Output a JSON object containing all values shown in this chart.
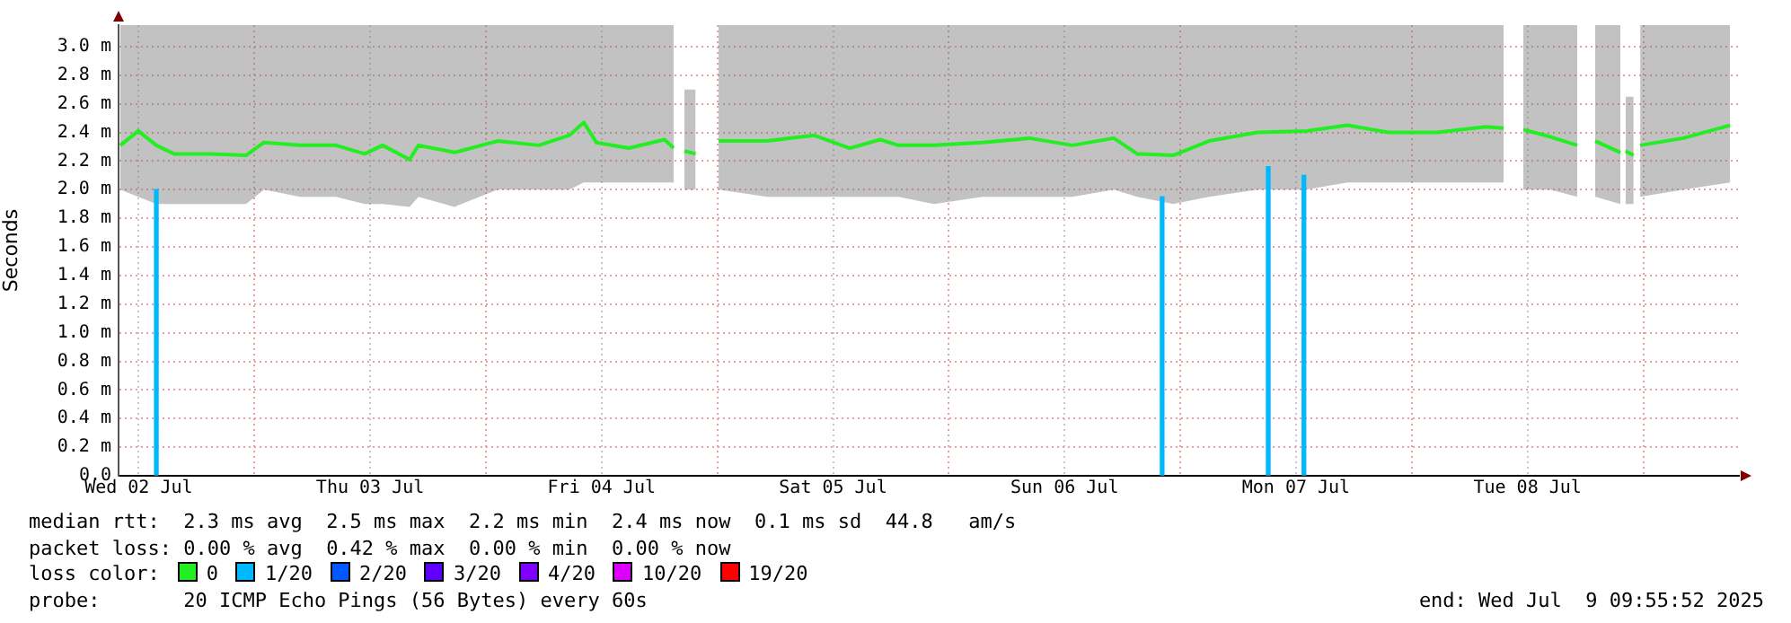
{
  "chart_data": {
    "type": "line",
    "ylabel": "Seconds",
    "legend_title": "loss color:",
    "legend": "bottom",
    "grid": true,
    "marker": "none",
    "line_style": "solid",
    "xlim": [
      "2025-07-02T09:55",
      "2025-07-09T09:55"
    ],
    "xticks": [
      {
        "value": "2025-07-02T12:00",
        "label": "Wed 02 Jul"
      },
      {
        "value": "2025-07-03T00:00",
        "label": null
      },
      {
        "value": "2025-07-03T12:00",
        "label": "Thu 03 Jul"
      },
      {
        "value": "2025-07-04T00:00",
        "label": null
      },
      {
        "value": "2025-07-04T12:00",
        "label": "Fri 04 Jul"
      },
      {
        "value": "2025-07-05T00:00",
        "label": null
      },
      {
        "value": "2025-07-05T12:00",
        "label": "Sat 05 Jul"
      },
      {
        "value": "2025-07-06T00:00",
        "label": null
      },
      {
        "value": "2025-07-06T12:00",
        "label": "Sun 06 Jul"
      },
      {
        "value": "2025-07-07T00:00",
        "label": null
      },
      {
        "value": "2025-07-07T12:00",
        "label": "Mon 07 Jul"
      },
      {
        "value": "2025-07-08T00:00",
        "label": null
      },
      {
        "value": "2025-07-08T12:00",
        "label": "Tue 08 Jul"
      },
      {
        "value": "2025-07-09T00:00",
        "label": null
      }
    ],
    "ylim": [
      0,
      3.15
    ],
    "yticks": [
      {
        "value": 0,
        "label": "0.0"
      },
      {
        "value": 0.2,
        "label": "0.2 m"
      },
      {
        "value": 0.4,
        "label": "0.4 m"
      },
      {
        "value": 0.6,
        "label": "0.6 m"
      },
      {
        "value": 0.8,
        "label": "0.8 m"
      },
      {
        "value": 1.0,
        "label": "1.0 m"
      },
      {
        "value": 1.2,
        "label": "1.2 m"
      },
      {
        "value": 1.4,
        "label": "1.4 m"
      },
      {
        "value": 1.6,
        "label": "1.6 m"
      },
      {
        "value": 1.8,
        "label": "1.8 m"
      },
      {
        "value": 2.0,
        "label": "2.0 m"
      },
      {
        "value": 2.2,
        "label": "2.2 m"
      },
      {
        "value": 2.4,
        "label": "2.4 m"
      },
      {
        "value": 2.6,
        "label": "2.6 m"
      },
      {
        "value": 2.8,
        "label": "2.8 m"
      },
      {
        "value": 3.0,
        "label": "3.0 m"
      }
    ],
    "series": [
      {
        "name": "0",
        "color": "#22ee22",
        "x": [
          "2025-07-02T10:06",
          "2025-07-02T11:58",
          "2025-07-02T13:50",
          "2025-07-02T15:41",
          "2025-07-02T19:25",
          "2025-07-02T23:08",
          "2025-07-03T01:00",
          "2025-07-03T04:44",
          "2025-07-03T08:27",
          "2025-07-03T11:26",
          "2025-07-03T13:18",
          "2025-07-03T16:05",
          "2025-07-03T17:01",
          "2025-07-03T20:45",
          "2025-07-04T01:13",
          "2025-07-04T05:30",
          "2025-07-04T08:40",
          "2025-07-04T10:09",
          "2025-07-04T11:27",
          "2025-07-04T14:49",
          "2025-07-04T18:32",
          "2025-07-04T19:28",
          "2025-07-04T20:15",
          "2025-07-04T20:35",
          "2025-07-04T21:45",
          "2025-07-04T22:30",
          "2025-07-05T00:08",
          "2025-07-05T05:09",
          "2025-07-05T10:00",
          "2025-07-05T13:44",
          "2025-07-05T16:53",
          "2025-07-05T18:45",
          "2025-07-05T22:29",
          "2025-07-06T03:30",
          "2025-07-06T08:21",
          "2025-07-06T12:49",
          "2025-07-06T17:06",
          "2025-07-06T19:32",
          "2025-07-06T23:15",
          "2025-07-07T02:59",
          "2025-07-07T08:00",
          "2025-07-07T13:02",
          "2025-07-07T17:19",
          "2025-07-07T21:36",
          "2025-07-08T02:38",
          "2025-07-08T07:39",
          "2025-07-08T09:31",
          "2025-07-08T10:30",
          "2025-07-08T11:34",
          "2025-07-08T14:21",
          "2025-07-08T17:09",
          "2025-07-08T18:05",
          "2025-07-08T19:01",
          "2025-07-08T21:38",
          "2025-07-08T21:55",
          "2025-07-08T22:10",
          "2025-07-08T23:00",
          "2025-07-08T23:15",
          "2025-07-08T23:41",
          "2025-07-09T04:09",
          "2025-07-09T09:00"
        ],
        "values": [
          2.31,
          2.41,
          2.31,
          2.25,
          2.25,
          2.24,
          2.33,
          2.31,
          2.31,
          2.25,
          2.31,
          2.21,
          2.31,
          2.26,
          2.34,
          2.31,
          2.38,
          2.47,
          2.33,
          2.29,
          2.35,
          2.29,
          null,
          2.27,
          2.25,
          null,
          2.34,
          2.34,
          2.38,
          2.29,
          2.35,
          2.31,
          2.31,
          2.33,
          2.36,
          2.31,
          2.36,
          2.25,
          2.24,
          2.34,
          2.4,
          2.41,
          2.45,
          2.4,
          2.4,
          2.44,
          2.43,
          null,
          2.42,
          2.37,
          2.31,
          null,
          2.34,
          2.26,
          null,
          2.27,
          2.24,
          null,
          2.31,
          2.36,
          2.45
        ],
        "lower": [
          2.0,
          1.95,
          1.9,
          1.9,
          1.9,
          1.9,
          2.0,
          1.95,
          1.95,
          1.9,
          1.9,
          1.88,
          1.95,
          1.88,
          2.0,
          2.0,
          2.0,
          2.05,
          2.05,
          2.05,
          2.05,
          2.05,
          null,
          2.0,
          2.0,
          null,
          2.0,
          1.95,
          1.95,
          1.95,
          1.95,
          1.95,
          1.9,
          1.95,
          1.95,
          1.95,
          2.0,
          1.95,
          1.9,
          1.95,
          2.0,
          2.0,
          2.05,
          2.05,
          2.05,
          2.05,
          2.05,
          null,
          2.0,
          2.0,
          1.95,
          null,
          1.95,
          1.9,
          null,
          1.9,
          1.9,
          null,
          1.95,
          2.0,
          2.05
        ],
        "upper": [
          3.15,
          3.15,
          3.15,
          3.15,
          3.15,
          3.15,
          3.15,
          3.15,
          3.15,
          3.15,
          3.15,
          3.15,
          3.15,
          3.15,
          3.15,
          3.15,
          3.15,
          3.15,
          3.15,
          3.15,
          3.15,
          3.15,
          null,
          2.7,
          2.7,
          null,
          3.15,
          3.15,
          3.15,
          3.15,
          3.15,
          3.15,
          3.15,
          3.15,
          3.15,
          3.15,
          3.15,
          3.15,
          3.15,
          3.15,
          3.15,
          3.15,
          3.15,
          3.15,
          3.15,
          3.15,
          3.15,
          null,
          3.15,
          3.15,
          3.15,
          null,
          3.15,
          3.15,
          null,
          2.65,
          2.65,
          null,
          3.15,
          3.15,
          3.15
        ]
      },
      {
        "name": "1/20",
        "color": "#00b8ff",
        "type": "bar",
        "x": [
          "2025-07-02T13:50",
          "2025-07-06T22:07",
          "2025-07-07T09:07",
          "2025-07-07T12:49"
        ],
        "values": [
          2.0,
          1.95,
          2.16,
          2.1
        ]
      },
      {
        "name": "2/20",
        "color": "#0059ff"
      },
      {
        "name": "3/20",
        "color": "#5e00ff"
      },
      {
        "name": "4/20",
        "color": "#7e00ff"
      },
      {
        "name": "10/20",
        "color": "#dd00ff"
      },
      {
        "name": "19/20",
        "color": "#ff0000"
      }
    ],
    "annotations": [
      "median rtt:  2.3 ms avg  2.5 ms max  2.2 ms min  2.4 ms now  0.1 ms sd  44.8   am/s",
      "packet loss: 0.00 % avg  0.42 % max  0.00 % min  0.00 % now",
      "probe:       20 ICMP Echo Pings (56 Bytes) every 60s",
      "end: Wed Jul  9 09:55:52 2025"
    ]
  }
}
